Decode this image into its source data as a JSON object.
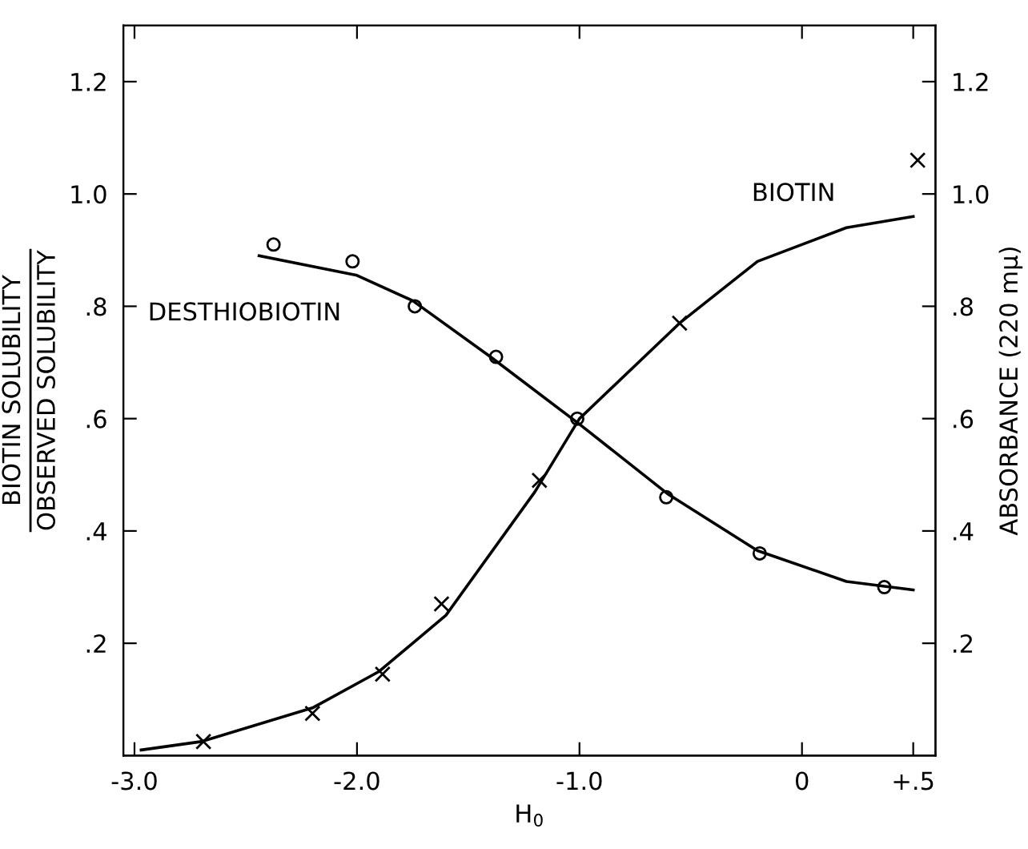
{
  "chart_data": {
    "type": "scatter",
    "xlabel": "H$_{0}$",
    "ylabel": "BIOTIN SOLUBILITY\nOBSERVED SOLUBILITY",
    "y2label": "ABSORBANCE (220 mμ)",
    "xlim": [
      -3.05,
      0.6
    ],
    "xticks": [
      {
        "value": -3.0,
        "label": "-3.0"
      },
      {
        "value": -2.0,
        "label": "-2.0"
      },
      {
        "value": -1.0,
        "label": "-1.0"
      },
      0,
      {
        "value": 0.5,
        "label": "+.5"
      }
    ],
    "ylim": [
      0,
      1.3
    ],
    "yticks": [
      {
        "value": 0.2,
        "label": ".2"
      },
      {
        "value": 0.4,
        "label": ".4"
      },
      {
        "value": 0.6,
        "label": ".6"
      },
      {
        "value": 0.8,
        "label": ".8"
      },
      {
        "value": 1.0,
        "label": "1.0"
      },
      {
        "value": 1.2,
        "label": "1.2"
      }
    ],
    "y2lim": [
      0,
      1.3
    ],
    "y2ticks": [
      {
        "value": 0.2,
        "label": ".2"
      },
      {
        "value": 0.4,
        "label": ".4"
      },
      {
        "value": 0.6,
        "label": ".6"
      },
      {
        "value": 0.8,
        "label": ".8"
      },
      {
        "value": 1.0,
        "label": "1.0"
      },
      {
        "value": 1.2,
        "label": "1.2"
      }
    ],
    "grid": false,
    "legend": false,
    "series": [
      {
        "marker": "circle",
        "color": "#000000",
        "x": [
          -2.375,
          -2.02,
          -1.74,
          -1.375,
          -1.01,
          -0.61,
          -0.19,
          0.37
        ],
        "values": [
          0.91,
          0.88,
          0.8,
          0.71,
          0.6,
          0.46,
          0.36,
          0.3
        ]
      },
      {
        "type": "line",
        "name": "DESTHIOBIOTIN",
        "marker": "none",
        "color": "#000000",
        "x": [
          -2.44,
          -2.0,
          -1.75,
          -1.4,
          -1.0,
          -0.6,
          -0.2,
          0.2,
          0.5
        ],
        "values": [
          0.89,
          0.855,
          0.81,
          0.71,
          0.59,
          0.465,
          0.365,
          0.31,
          0.295
        ]
      },
      {
        "marker": "cross",
        "color": "#000000",
        "x": [
          -2.69,
          -2.2,
          -1.885,
          -1.62,
          -1.18,
          -0.55,
          0.52
        ],
        "values": [
          0.025,
          0.075,
          0.145,
          0.27,
          0.49,
          0.77,
          1.06
        ]
      },
      {
        "type": "line",
        "name": "BIOTIN",
        "marker": "none",
        "color": "#000000",
        "x": [
          -2.97,
          -2.7,
          -2.2,
          -1.9,
          -1.6,
          -1.2,
          -1.0,
          -0.55,
          -0.2,
          0.2,
          0.5
        ],
        "values": [
          0.01,
          0.025,
          0.085,
          0.15,
          0.25,
          0.47,
          0.6,
          0.77,
          0.88,
          0.94,
          0.96
        ]
      }
    ]
  }
}
